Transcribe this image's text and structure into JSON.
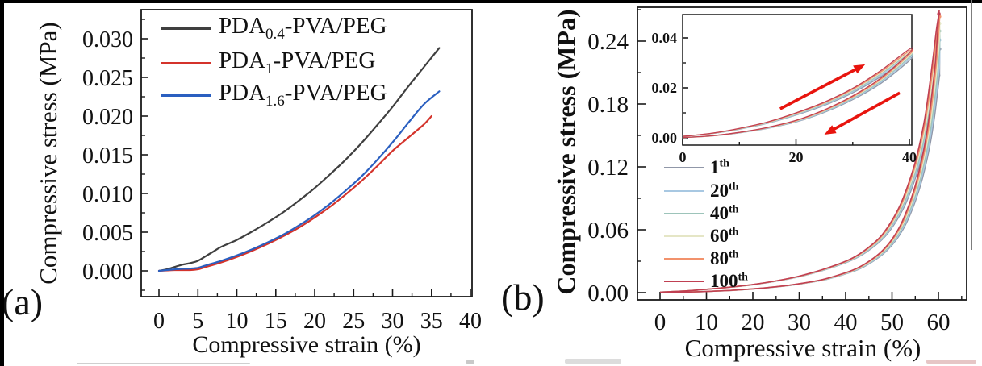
{
  "figure": {
    "panel_a_label": "(a)",
    "panel_b_label": "(b)",
    "frame_color": "#1a1a1a",
    "background": "#ffffff"
  },
  "chart_data": [
    {
      "id": "panel_a",
      "type": "line",
      "title": "",
      "xlabel": "Compressive strain (%)",
      "ylabel": "Compressive stress (MPa)",
      "xlim": [
        0,
        40
      ],
      "ylim": [
        0,
        0.03
      ],
      "grid": false,
      "legend_position": "top-left",
      "xticks": [
        "0",
        "5",
        "10",
        "15",
        "20",
        "25",
        "30",
        "35",
        "40"
      ],
      "yticks": [
        "0.000",
        "0.005",
        "0.010",
        "0.015",
        "0.020",
        "0.025",
        "0.030"
      ],
      "series": [
        {
          "name": "PDA0.4-PVA/PEG",
          "legend": {
            "pre": "PDA",
            "sub": "0.4",
            "post": "-PVA/PEG"
          },
          "color": "#3f3f3f",
          "points": [
            [
              0,
              0
            ],
            [
              1,
              0.0002
            ],
            [
              2,
              0.0005
            ],
            [
              3,
              0.0008
            ],
            [
              4,
              0.001
            ],
            [
              5,
              0.0013
            ],
            [
              6,
              0.0019
            ],
            [
              7,
              0.0025
            ],
            [
              8,
              0.0031
            ],
            [
              10,
              0.004
            ],
            [
              12,
              0.0051
            ],
            [
              14,
              0.0063
            ],
            [
              16,
              0.0076
            ],
            [
              18,
              0.0091
            ],
            [
              20,
              0.0107
            ],
            [
              22,
              0.0125
            ],
            [
              24,
              0.0144
            ],
            [
              26,
              0.0165
            ],
            [
              28,
              0.0188
            ],
            [
              30,
              0.0212
            ],
            [
              32,
              0.0238
            ],
            [
              34,
              0.0263
            ],
            [
              36,
              0.0288
            ]
          ]
        },
        {
          "name": "PDA1-PVA/PEG",
          "legend": {
            "pre": "PDA",
            "sub": "1",
            "post": "-PVA/PEG"
          },
          "color": "#d4332b",
          "points": [
            [
              0,
              0
            ],
            [
              2,
              0.0001
            ],
            [
              4,
              0.0001
            ],
            [
              5,
              0.0002
            ],
            [
              6,
              0.0005
            ],
            [
              8,
              0.0011
            ],
            [
              10,
              0.0018
            ],
            [
              12,
              0.0026
            ],
            [
              14,
              0.0035
            ],
            [
              16,
              0.0045
            ],
            [
              18,
              0.0056
            ],
            [
              20,
              0.0069
            ],
            [
              22,
              0.0083
            ],
            [
              24,
              0.0099
            ],
            [
              26,
              0.0116
            ],
            [
              28,
              0.0135
            ],
            [
              30,
              0.0155
            ],
            [
              32,
              0.0172
            ],
            [
              34,
              0.0189
            ],
            [
              35,
              0.02
            ]
          ]
        },
        {
          "name": "PDA1.6-PVA/PEG",
          "legend": {
            "pre": "PDA",
            "sub": "1.6",
            "post": "-PVA/PEG"
          },
          "color": "#2a5fc0",
          "points": [
            [
              0,
              0
            ],
            [
              2,
              0.0002
            ],
            [
              4,
              0.0003
            ],
            [
              5,
              0.0004
            ],
            [
              6,
              0.0007
            ],
            [
              8,
              0.0013
            ],
            [
              10,
              0.002
            ],
            [
              12,
              0.0028
            ],
            [
              14,
              0.0037
            ],
            [
              16,
              0.0047
            ],
            [
              18,
              0.0059
            ],
            [
              20,
              0.0072
            ],
            [
              22,
              0.0087
            ],
            [
              24,
              0.0104
            ],
            [
              26,
              0.0122
            ],
            [
              28,
              0.0143
            ],
            [
              30,
              0.0166
            ],
            [
              32,
              0.0191
            ],
            [
              34,
              0.0215
            ],
            [
              36,
              0.0232
            ]
          ]
        }
      ]
    },
    {
      "id": "panel_b",
      "type": "line",
      "title": "",
      "xlabel": "Compressive strain (%)",
      "ylabel": "Compressive stress (MPa)",
      "xlim": [
        0,
        60
      ],
      "ylim": [
        0,
        0.24
      ],
      "grid": false,
      "legend_position": "middle-left",
      "xticks": [
        "0",
        "10",
        "20",
        "30",
        "40",
        "50",
        "60"
      ],
      "yticks": [
        "0.00",
        "0.06",
        "0.12",
        "0.18",
        "0.24"
      ],
      "series": [
        {
          "name": "1th",
          "legend": {
            "num": "1",
            "sup": "th"
          },
          "color": "#9097a8",
          "strain_scale": 1.02,
          "inset_stress_scale": 0.91
        },
        {
          "name": "20th",
          "legend": {
            "num": "20",
            "sup": "th"
          },
          "color": "#a8c8e2",
          "strain_scale": 1.016,
          "inset_stress_scale": 0.93
        },
        {
          "name": "40th",
          "legend": {
            "num": "40",
            "sup": "th"
          },
          "color": "#9dc4ba",
          "strain_scale": 1.012,
          "inset_stress_scale": 0.95
        },
        {
          "name": "60th",
          "legend": {
            "num": "60",
            "sup": "th"
          },
          "color": "#e5e6c6",
          "strain_scale": 1.008,
          "inset_stress_scale": 0.965
        },
        {
          "name": "80th",
          "legend": {
            "num": "80",
            "sup": "th"
          },
          "color": "#f2926c",
          "strain_scale": 1.004,
          "inset_stress_scale": 0.98
        },
        {
          "name": "100th",
          "legend": {
            "num": "100",
            "sup": "th"
          },
          "color": "#c04052",
          "strain_scale": 1.0,
          "inset_stress_scale": 1.0
        }
      ],
      "base_loading": [
        [
          0,
          0.0005
        ],
        [
          5,
          0.0015
        ],
        [
          10,
          0.0032
        ],
        [
          15,
          0.0052
        ],
        [
          20,
          0.0078
        ],
        [
          25,
          0.0112
        ],
        [
          30,
          0.0158
        ],
        [
          35,
          0.022
        ],
        [
          40,
          0.03
        ],
        [
          43,
          0.037
        ],
        [
          46,
          0.047
        ],
        [
          48,
          0.056
        ],
        [
          50,
          0.069
        ],
        [
          52,
          0.086
        ],
        [
          54,
          0.11
        ],
        [
          55.5,
          0.133
        ],
        [
          57,
          0.165
        ],
        [
          58,
          0.195
        ],
        [
          59,
          0.23
        ],
        [
          59.6,
          0.252
        ],
        [
          60.1,
          0.266
        ]
      ],
      "base_unloading": [
        [
          60.1,
          0.266
        ],
        [
          59.5,
          0.228
        ],
        [
          59,
          0.205
        ],
        [
          58,
          0.168
        ],
        [
          57,
          0.14
        ],
        [
          55.5,
          0.11
        ],
        [
          54,
          0.088
        ],
        [
          52,
          0.066
        ],
        [
          50,
          0.051
        ],
        [
          48,
          0.0405
        ],
        [
          46,
          0.033
        ],
        [
          43,
          0.0245
        ],
        [
          40,
          0.019
        ],
        [
          35,
          0.0125
        ],
        [
          30,
          0.0085
        ],
        [
          25,
          0.0056
        ],
        [
          20,
          0.0036
        ],
        [
          15,
          0.0021
        ],
        [
          10,
          0.0011
        ],
        [
          5,
          0.0004
        ],
        [
          0,
          0
        ]
      ],
      "inset": {
        "xlim": [
          0,
          40
        ],
        "ylim": [
          0,
          0.04
        ],
        "xticks": [
          "0",
          "20",
          "40"
        ],
        "yticks": [
          "0.00",
          "0.02",
          "0.04"
        ],
        "loading": [
          [
            0,
            0.0006
          ],
          [
            5,
            0.0018
          ],
          [
            10,
            0.0038
          ],
          [
            15,
            0.0064
          ],
          [
            20,
            0.01
          ],
          [
            25,
            0.0143
          ],
          [
            30,
            0.0198
          ],
          [
            35,
            0.027
          ],
          [
            40,
            0.0355
          ]
        ],
        "unloading": [
          [
            40,
            0.034
          ],
          [
            35,
            0.024
          ],
          [
            30,
            0.0168
          ],
          [
            25,
            0.0112
          ],
          [
            20,
            0.007
          ],
          [
            15,
            0.0042
          ],
          [
            10,
            0.0022
          ],
          [
            5,
            0.0008
          ],
          [
            0,
            0.0001
          ]
        ],
        "arrow_color": "#e8140e",
        "arrows": [
          {
            "direction": "loading",
            "from": [
              17.2,
              0.0116
            ],
            "to": [
              32.2,
              0.0294
            ]
          },
          {
            "direction": "unloading",
            "from": [
              38.3,
              0.018
            ],
            "to": [
              25.0,
              0.0013
            ]
          }
        ]
      }
    }
  ]
}
